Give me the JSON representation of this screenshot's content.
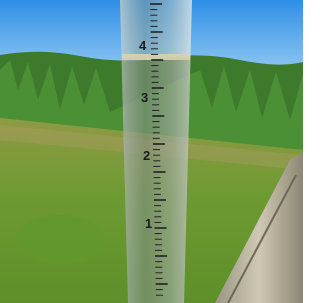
{
  "gauge": {
    "labels": [
      "4",
      "3",
      "2",
      "1"
    ]
  }
}
